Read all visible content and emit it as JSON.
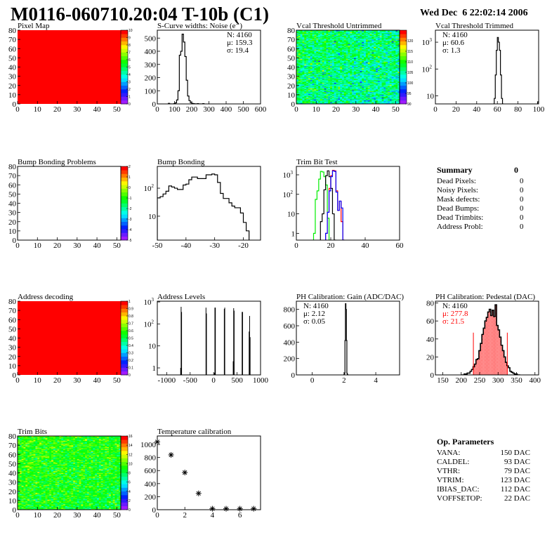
{
  "header": {
    "title": "M0116-060710.20:04 T-10b (C1)",
    "date": "Wed Dec  6 22:02:14 2006"
  },
  "summary": {
    "title": "Summary",
    "total": "0",
    "rows": [
      {
        "label": "Dead Pixels:",
        "value": "0"
      },
      {
        "label": "Noisy Pixels:",
        "value": "0"
      },
      {
        "label": "Mask defects:",
        "value": "0"
      },
      {
        "label": "Dead Bumps:",
        "value": "0"
      },
      {
        "label": "Dead Trimbits:",
        "value": "0"
      },
      {
        "label": "Address Probl:",
        "value": "0"
      }
    ]
  },
  "op_parameters": {
    "title": "Op. Parameters",
    "rows": [
      {
        "label": "VANA:",
        "value": "150 DAC"
      },
      {
        "label": "CALDEL:",
        "value": "93 DAC"
      },
      {
        "label": "VTHR:",
        "value": "79 DAC"
      },
      {
        "label": "VTRIM:",
        "value": "123 DAC"
      },
      {
        "label": "IBIAS_DAC:",
        "value": "112 DAC"
      },
      {
        "label": "VOFFSETOP:",
        "value": "22 DAC"
      }
    ]
  },
  "chart_data": [
    {
      "type": "heatmap",
      "title": "Pixel Map",
      "xlim": [
        0,
        52
      ],
      "ylim": [
        0,
        80
      ],
      "xticks": [
        0,
        10,
        20,
        30,
        40,
        50
      ],
      "yticks": [
        0,
        10,
        20,
        30,
        40,
        50,
        60,
        70,
        80
      ],
      "palette": {
        "min": 0,
        "max": 10,
        "ticks": [
          0,
          1,
          2,
          3,
          4,
          5,
          6,
          7,
          8,
          9,
          10
        ]
      },
      "uniform_value": 10
    },
    {
      "type": "histogram",
      "title": "S-Curve widths: Noise (e⁻)",
      "xlim": [
        0,
        600
      ],
      "ylim": [
        0,
        560
      ],
      "xticks": [
        0,
        100,
        200,
        300,
        400,
        500,
        600
      ],
      "yticks": [
        0,
        100,
        200,
        300,
        400,
        500
      ],
      "series": [
        {
          "color": "#000000",
          "x_start": 64,
          "bin_width": 8,
          "values": [
            4,
            0,
            0,
            0,
            2,
            8,
            30,
            100,
            370,
            400,
            530,
            470,
            360,
            180,
            60,
            25,
            10,
            4,
            2,
            1,
            0,
            2,
            0,
            0,
            0,
            2
          ]
        }
      ],
      "stats": [
        {
          "text": "N: 4160",
          "color": "#000000"
        },
        {
          "text": "μ: 159.3",
          "color": "#000000"
        },
        {
          "text": "σ: 19.4",
          "color": "#000000"
        }
      ],
      "stats_position": "top-right"
    },
    {
      "type": "heatmap",
      "title": "Vcal Threshold Untrimmed",
      "xlim": [
        0,
        52
      ],
      "ylim": [
        0,
        80
      ],
      "xticks": [
        0,
        10,
        20,
        30,
        40,
        50
      ],
      "yticks": [
        0,
        10,
        20,
        30,
        40,
        50,
        60,
        70,
        80
      ],
      "palette": {
        "min": 90,
        "max": 125,
        "ticks": [
          90,
          95,
          100,
          105,
          110,
          115,
          120
        ]
      },
      "distribution": {
        "mean": 106,
        "sigma": 4
      }
    },
    {
      "type": "histogram",
      "title": "Vcal Threshold Trimmed",
      "log_y": true,
      "xlim": [
        0,
        100
      ],
      "ylim": [
        5,
        2800
      ],
      "xticks": [
        0,
        20,
        40,
        60,
        80,
        100
      ],
      "yticks": [
        10,
        100,
        1000
      ],
      "series": [
        {
          "color": "#000000",
          "x_start": 56,
          "bin_width": 1,
          "values": [
            0,
            8,
            60,
            500,
            1500,
            1000,
            500,
            60,
            8,
            0
          ]
        },
        {
          "color": "#000000",
          "x_start": 99,
          "bin_width": 1,
          "values": [
            6
          ]
        }
      ],
      "stats": [
        {
          "text": "N: 4160",
          "color": "#000000"
        },
        {
          "text": "μ: 60.6",
          "color": "#000000"
        },
        {
          "text": "σ:  1.3",
          "color": "#000000"
        }
      ],
      "stats_position": "top-left"
    },
    {
      "type": "heatmap",
      "title": "Bump Bonding Problems",
      "xlim": [
        0,
        52
      ],
      "ylim": [
        0,
        80
      ],
      "xticks": [
        0,
        10,
        20,
        30,
        40,
        50
      ],
      "yticks": [
        0,
        10,
        20,
        30,
        40,
        50,
        60,
        70,
        80
      ],
      "palette": {
        "min": -5,
        "max": 2,
        "ticks": [
          -5,
          -4,
          -3,
          -2,
          -1,
          0,
          1,
          2
        ]
      },
      "empty": true
    },
    {
      "type": "histogram",
      "title": "Bump Bonding",
      "log_y": true,
      "xlim": [
        -50,
        -14
      ],
      "ylim": [
        1.4,
        600
      ],
      "xticks": [
        -50,
        -40,
        -30,
        -20
      ],
      "yticks": [
        10,
        100
      ],
      "series": [
        {
          "color": "#000000",
          "x_start": -50,
          "bin_width": 1,
          "values": [
            45,
            50,
            62,
            78,
            120,
            110,
            100,
            90,
            90,
            130,
            140,
            200,
            250,
            250,
            220,
            220,
            220,
            300,
            300,
            320,
            300,
            160,
            65,
            43,
            43,
            30,
            23,
            20,
            20,
            13,
            6,
            3
          ]
        }
      ]
    },
    {
      "type": "histogram",
      "title": "Trim Bit Test",
      "log_y": true,
      "xlim": [
        0,
        60
      ],
      "ylim": [
        0.45,
        2700
      ],
      "xticks": [
        0,
        20,
        40,
        60
      ],
      "yticks": [
        1,
        10,
        100,
        1000
      ],
      "series": [
        {
          "color": "#00ee00",
          "x_start": 10,
          "bin_width": 1,
          "values": [
            1,
            55,
            150,
            600,
            1500,
            1400,
            800,
            300,
            6,
            0.3
          ]
        },
        {
          "color": "#000000",
          "x_start": 14,
          "bin_width": 1,
          "values": [
            4,
            10,
            170,
            900,
            1600,
            800,
            200,
            10,
            0.3
          ]
        },
        {
          "color": "#ff0000",
          "x_start": 17,
          "bin_width": 1,
          "values": [
            1,
            12,
            200,
            900,
            1700,
            1600,
            150,
            15,
            45,
            4,
            0.3
          ]
        },
        {
          "color": "#0000ff",
          "x_start": 17,
          "bin_width": 1,
          "values": [
            1,
            12,
            150,
            800,
            1600,
            1500,
            130,
            15,
            45,
            20,
            0.3
          ]
        }
      ]
    },
    {
      "type": "heatmap",
      "title": "Address decoding",
      "xlim": [
        0,
        52
      ],
      "ylim": [
        0,
        80
      ],
      "xticks": [
        0,
        10,
        20,
        30,
        40,
        50
      ],
      "yticks": [
        0,
        10,
        20,
        30,
        40,
        50,
        60,
        70,
        80
      ],
      "palette": {
        "min": 0,
        "max": 1,
        "ticks": [
          0,
          0.1,
          0.2,
          0.3,
          0.4,
          0.5,
          0.6,
          0.7,
          0.8,
          0.9,
          1
        ]
      },
      "uniform_value": 1
    },
    {
      "type": "bars",
      "title": "Address Levels",
      "log_y": true,
      "xlim": [
        -1200,
        1000
      ],
      "ylim": [
        0.48,
        1080
      ],
      "xticks": [
        -1000,
        -500,
        0,
        500,
        1000
      ],
      "yticks": [
        1,
        10,
        100,
        1000
      ],
      "bin_width": 10,
      "bars": [
        [
          -710,
          1
        ],
        [
          -700,
          600
        ],
        [
          -690,
          350
        ],
        [
          -170,
          550
        ],
        [
          -160,
          300
        ],
        [
          10,
          0.6
        ],
        [
          20,
          550
        ],
        [
          30,
          550
        ],
        [
          220,
          480
        ],
        [
          230,
          550
        ],
        [
          410,
          2
        ],
        [
          420,
          520
        ],
        [
          430,
          400
        ],
        [
          600,
          350
        ],
        [
          610,
          350
        ],
        [
          750,
          45
        ],
        [
          760,
          230
        ],
        [
          770,
          25
        ]
      ]
    },
    {
      "type": "histogram",
      "title": "PH Calibration: Gain (ADC/DAC)",
      "xlim": [
        -1,
        5.5
      ],
      "ylim": [
        0,
        900
      ],
      "xticks": [
        0,
        2,
        4
      ],
      "yticks": [
        0,
        200,
        400,
        600,
        800
      ],
      "series": [
        {
          "color": "#000000",
          "x_start": 2.0,
          "bin_width": 0.03,
          "values": [
            3,
            20,
            420,
            870,
            800,
            420,
            20,
            5
          ]
        }
      ],
      "stats": [
        {
          "text": "N: 4160",
          "color": "#000000"
        },
        {
          "text": "μ: 2.12",
          "color": "#000000"
        },
        {
          "text": "σ: 0.05",
          "color": "#000000"
        }
      ],
      "stats_position": "top-left"
    },
    {
      "type": "histogram",
      "title": "PH Calibration: Pedestal (DAC)",
      "xlim": [
        130,
        410
      ],
      "ylim": [
        0,
        82
      ],
      "xticks": [
        150,
        200,
        250,
        300,
        350,
        400
      ],
      "yticks": [
        0,
        20,
        40,
        60,
        80
      ],
      "series": [
        {
          "color": "#000000",
          "x_start": 200,
          "bin_width": 4,
          "values": [
            0,
            0,
            1,
            1,
            2,
            2,
            4,
            6,
            9,
            12,
            17,
            18,
            27,
            35,
            45,
            52,
            60,
            64,
            70,
            73,
            66,
            72,
            65,
            78,
            55,
            50,
            42,
            33,
            27,
            20,
            14,
            10,
            8,
            4,
            3,
            2,
            1,
            1,
            0,
            0
          ]
        }
      ],
      "fit_range": [
        233,
        325
      ],
      "fit_line_height": 47,
      "fit_color": "#ff0000",
      "stats": [
        {
          "text": "N: 4160",
          "color": "#000000"
        },
        {
          "text": "μ: 277.8",
          "color": "#ff0000"
        },
        {
          "text": "σ: 21.5",
          "color": "#ff0000"
        }
      ],
      "stats_position": "top-left"
    },
    {
      "type": "heatmap",
      "title": "Trim Bits",
      "xlim": [
        0,
        52
      ],
      "ylim": [
        0,
        80
      ],
      "xticks": [
        0,
        10,
        20,
        30,
        40,
        50
      ],
      "yticks": [
        0,
        10,
        20,
        30,
        40,
        50,
        60,
        70,
        80
      ],
      "palette": {
        "min": 0,
        "max": 16,
        "ticks": [
          0,
          2,
          4,
          6,
          8,
          10,
          12,
          14,
          16
        ]
      },
      "distribution": {
        "mean": 9,
        "sigma": 1.4
      }
    },
    {
      "type": "scatter",
      "title": "Temperature calibration",
      "xlim": [
        0,
        7.5
      ],
      "ylim": [
        0,
        1130
      ],
      "xticks": [
        0,
        2,
        4,
        6
      ],
      "yticks": [
        0,
        200,
        400,
        600,
        800,
        1000
      ],
      "marker": "asterisk",
      "x": [
        0,
        1,
        2,
        3,
        4,
        5,
        6,
        7
      ],
      "y": [
        1040,
        840,
        570,
        250,
        15,
        15,
        15,
        15
      ]
    }
  ]
}
